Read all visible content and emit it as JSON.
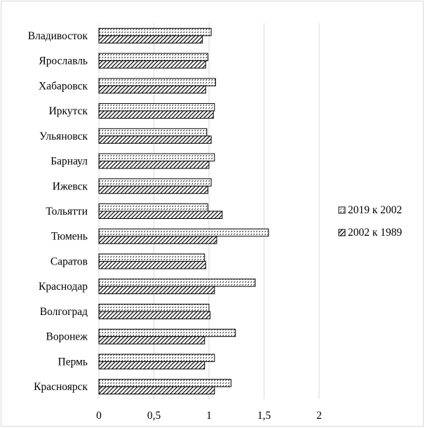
{
  "chart_data": {
    "type": "bar",
    "orientation": "horizontal",
    "categories": [
      "Красноярск",
      "Пермь",
      "Воронеж",
      "Волгоград",
      "Краснодар",
      "Саратов",
      "Тюмень",
      "Тольятти",
      "Ижевск",
      "Барнаул",
      "Ульяновск",
      "Иркутск",
      "Хабаровск",
      "Ярославль",
      "Владивосток"
    ],
    "series": [
      {
        "name": "2019 к 2002",
        "pattern": "dotted",
        "values": [
          1.2,
          1.05,
          1.24,
          1.0,
          1.42,
          0.96,
          1.54,
          0.99,
          1.02,
          1.05,
          0.98,
          1.05,
          1.06,
          0.99,
          1.02
        ]
      },
      {
        "name": "2002 к 1989",
        "pattern": "diagonal-hatch",
        "values": [
          1.05,
          0.96,
          0.96,
          1.01,
          1.05,
          0.97,
          1.07,
          1.12,
          0.99,
          1.0,
          1.02,
          1.04,
          0.97,
          0.97,
          0.94
        ]
      }
    ],
    "xlim": [
      0,
      2
    ],
    "xticks": [
      "0",
      "0,5",
      "1",
      "1,5",
      "2"
    ],
    "xtick_values": [
      0,
      0.5,
      1,
      1.5,
      2
    ],
    "grid": "vertical",
    "legend_position": "right",
    "colors": {
      "grid": "#d9d9d9",
      "bar_stroke": "#000000",
      "hatch": "#000000"
    }
  }
}
